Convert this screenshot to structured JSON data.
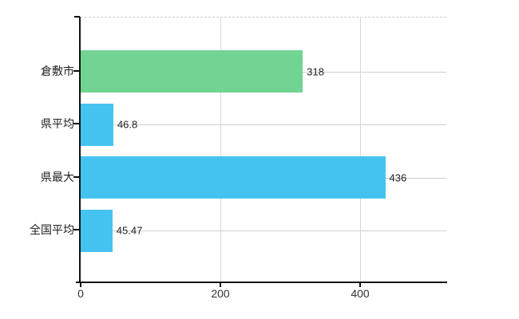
{
  "chart_data": {
    "type": "bar",
    "orientation": "horizontal",
    "title": "",
    "xlabel": "",
    "ylabel": "",
    "categories": [
      "倉敷市",
      "県平均",
      "県最大",
      "全国平均"
    ],
    "values": [
      318,
      46.8,
      436,
      45.47
    ],
    "value_labels": [
      "318",
      "46.8",
      "436",
      "45.47"
    ],
    "bar_colors": [
      "#72d493",
      "#45c3f0",
      "#45c3f0",
      "#45c3f0"
    ],
    "x_ticks": [
      0,
      200,
      400
    ],
    "x_tick_labels": [
      "0",
      "200",
      "400"
    ],
    "xlim": [
      0,
      523.4
    ],
    "grid": "on",
    "legend": "none",
    "colors": {
      "green_bar": "#72d493",
      "blue_bar": "#45c3f0",
      "axis": "#111111",
      "gridline_vertical": "#d9d9d9",
      "gridline_horizontal": "#ccd2c8",
      "top_border_dashed": "#cfcfcf",
      "text": "#222222",
      "background": "#ffffff"
    }
  }
}
